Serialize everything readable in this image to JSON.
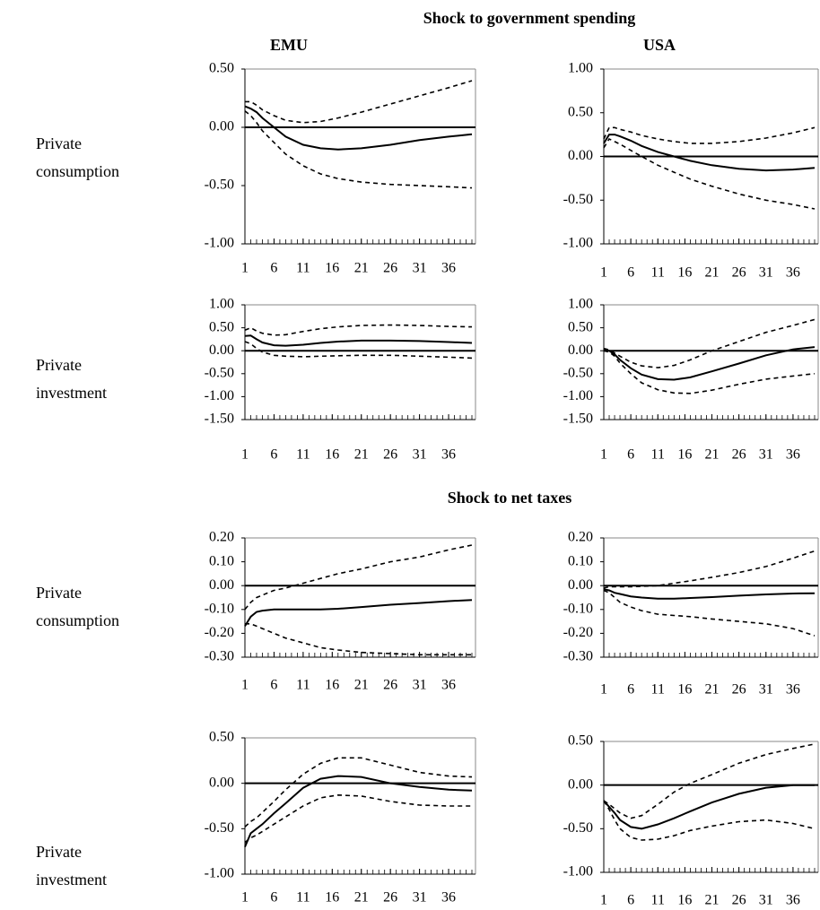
{
  "sections": [
    {
      "title": "Shock to government spending"
    },
    {
      "title": "Shock to net taxes"
    }
  ],
  "columns": [
    "EMU",
    "USA"
  ],
  "rows": [
    "Private consumption",
    "Private investment",
    "Private consumption",
    "Private investment"
  ],
  "chart_data": [
    {
      "type": "line",
      "x": [
        1,
        2,
        3,
        4,
        6,
        8,
        11,
        14,
        17,
        21,
        26,
        31,
        36,
        40
      ],
      "xlim": [
        1,
        40
      ],
      "xticks": [
        1,
        6,
        11,
        16,
        21,
        26,
        31,
        36
      ],
      "ylim": [
        -1,
        0.5
      ],
      "yticks": [
        {
          "value": -1,
          "label": "-1.00"
        },
        {
          "value": -0.5,
          "label": "-0.50"
        },
        {
          "value": 0,
          "label": "0.00"
        },
        {
          "value": 0.5,
          "label": "0.50"
        }
      ],
      "series": [
        {
          "color": "#000000",
          "style": "solid",
          "values": [
            0.18,
            0.16,
            0.13,
            0.08,
            0.0,
            -0.08,
            -0.15,
            -0.18,
            -0.19,
            -0.18,
            -0.15,
            -0.11,
            -0.08,
            -0.06
          ]
        },
        {
          "color": "#000000",
          "style": "dashed",
          "values": [
            0.22,
            0.22,
            0.19,
            0.15,
            0.1,
            0.06,
            0.04,
            0.05,
            0.08,
            0.13,
            0.2,
            0.27,
            0.34,
            0.4
          ]
        },
        {
          "color": "#000000",
          "style": "dashed",
          "values": [
            0.14,
            0.1,
            0.04,
            -0.03,
            -0.13,
            -0.23,
            -0.33,
            -0.4,
            -0.44,
            -0.47,
            -0.49,
            -0.5,
            -0.51,
            -0.52
          ]
        }
      ]
    },
    {
      "type": "line",
      "x": [
        1,
        2,
        3,
        4,
        6,
        8,
        11,
        14,
        17,
        21,
        26,
        31,
        36,
        40
      ],
      "xlim": [
        1,
        40
      ],
      "xticks": [
        1,
        6,
        11,
        16,
        21,
        26,
        31,
        36
      ],
      "ylim": [
        -1,
        1
      ],
      "yticks": [
        {
          "value": -1,
          "label": "-1.00"
        },
        {
          "value": -0.5,
          "label": "-0.50"
        },
        {
          "value": 0,
          "label": "0.00"
        },
        {
          "value": 0.5,
          "label": "0.50"
        },
        {
          "value": 1,
          "label": "1.00"
        }
      ],
      "series": [
        {
          "color": "#000000",
          "style": "solid",
          "values": [
            0.15,
            0.25,
            0.25,
            0.23,
            0.18,
            0.12,
            0.05,
            0.0,
            -0.05,
            -0.1,
            -0.14,
            -0.16,
            -0.15,
            -0.13
          ]
        },
        {
          "color": "#000000",
          "style": "dashed",
          "values": [
            0.2,
            0.33,
            0.33,
            0.31,
            0.28,
            0.24,
            0.2,
            0.17,
            0.15,
            0.15,
            0.17,
            0.21,
            0.27,
            0.33
          ]
        },
        {
          "color": "#000000",
          "style": "dashed",
          "values": [
            0.1,
            0.2,
            0.17,
            0.14,
            0.07,
            0.0,
            -0.1,
            -0.18,
            -0.26,
            -0.34,
            -0.43,
            -0.5,
            -0.55,
            -0.6
          ]
        }
      ]
    },
    {
      "type": "line",
      "x": [
        1,
        2,
        3,
        4,
        6,
        8,
        11,
        14,
        17,
        21,
        26,
        31,
        36,
        40
      ],
      "xlim": [
        1,
        40
      ],
      "xticks": [
        1,
        6,
        11,
        16,
        21,
        26,
        31,
        36
      ],
      "ylim": [
        -1.5,
        1
      ],
      "yticks": [
        {
          "value": -1.5,
          "label": "-1.50"
        },
        {
          "value": -1,
          "label": "-1.00"
        },
        {
          "value": -0.5,
          "label": "-0.50"
        },
        {
          "value": 0,
          "label": "0.00"
        },
        {
          "value": 0.5,
          "label": "0.50"
        },
        {
          "value": 1,
          "label": "1.00"
        }
      ],
      "series": [
        {
          "color": "#000000",
          "style": "solid",
          "values": [
            0.32,
            0.33,
            0.25,
            0.18,
            0.12,
            0.11,
            0.13,
            0.17,
            0.2,
            0.22,
            0.22,
            0.21,
            0.19,
            0.17
          ]
        },
        {
          "color": "#000000",
          "style": "dashed",
          "values": [
            0.45,
            0.5,
            0.43,
            0.38,
            0.34,
            0.35,
            0.42,
            0.48,
            0.52,
            0.55,
            0.56,
            0.55,
            0.53,
            0.52
          ]
        },
        {
          "color": "#000000",
          "style": "dashed",
          "values": [
            0.2,
            0.15,
            0.05,
            -0.03,
            -0.1,
            -0.12,
            -0.13,
            -0.12,
            -0.11,
            -0.1,
            -0.1,
            -0.12,
            -0.14,
            -0.16
          ]
        }
      ]
    },
    {
      "type": "line",
      "x": [
        1,
        2,
        3,
        4,
        6,
        8,
        11,
        14,
        17,
        21,
        26,
        31,
        36,
        40
      ],
      "xlim": [
        1,
        40
      ],
      "xticks": [
        1,
        6,
        11,
        16,
        21,
        26,
        31,
        36
      ],
      "ylim": [
        -1.5,
        1
      ],
      "yticks": [
        {
          "value": -1.5,
          "label": "-1.50"
        },
        {
          "value": -1,
          "label": "-1.00"
        },
        {
          "value": -0.5,
          "label": "-0.50"
        },
        {
          "value": 0,
          "label": "0.00"
        },
        {
          "value": 0.5,
          "label": "0.50"
        },
        {
          "value": 1,
          "label": "1.00"
        }
      ],
      "series": [
        {
          "color": "#000000",
          "style": "solid",
          "values": [
            0.02,
            0.0,
            -0.08,
            -0.2,
            -0.38,
            -0.52,
            -0.62,
            -0.63,
            -0.58,
            -0.45,
            -0.28,
            -0.1,
            0.03,
            0.08
          ]
        },
        {
          "color": "#000000",
          "style": "dashed",
          "values": [
            0.05,
            0.02,
            -0.05,
            -0.12,
            -0.25,
            -0.33,
            -0.37,
            -0.32,
            -0.2,
            0.0,
            0.2,
            0.4,
            0.55,
            0.68
          ]
        },
        {
          "color": "#000000",
          "style": "dashed",
          "values": [
            0.0,
            -0.03,
            -0.12,
            -0.27,
            -0.5,
            -0.7,
            -0.85,
            -0.92,
            -0.93,
            -0.86,
            -0.73,
            -0.62,
            -0.55,
            -0.5
          ]
        }
      ]
    },
    {
      "type": "line",
      "x": [
        1,
        2,
        3,
        4,
        6,
        8,
        11,
        14,
        17,
        21,
        26,
        31,
        36,
        40
      ],
      "xlim": [
        1,
        40
      ],
      "xticks": [
        1,
        6,
        11,
        16,
        21,
        26,
        31,
        36
      ],
      "ylim": [
        -0.3,
        0.2
      ],
      "yticks": [
        {
          "value": -0.3,
          "label": "-0.30"
        },
        {
          "value": -0.2,
          "label": "-0.20"
        },
        {
          "value": -0.1,
          "label": "-0.10"
        },
        {
          "value": 0,
          "label": "0.00"
        },
        {
          "value": 0.1,
          "label": "0.10"
        },
        {
          "value": 0.2,
          "label": "0.20"
        }
      ],
      "series": [
        {
          "color": "#000000",
          "style": "solid",
          "values": [
            -0.17,
            -0.13,
            -0.11,
            -0.105,
            -0.1,
            -0.1,
            -0.1,
            -0.1,
            -0.097,
            -0.09,
            -0.08,
            -0.073,
            -0.065,
            -0.06
          ]
        },
        {
          "color": "#000000",
          "style": "dashed",
          "values": [
            -0.1,
            -0.07,
            -0.05,
            -0.04,
            -0.02,
            -0.01,
            0.01,
            0.03,
            0.05,
            0.07,
            0.1,
            0.12,
            0.15,
            0.17
          ]
        },
        {
          "color": "#000000",
          "style": "dashed",
          "values": [
            -0.16,
            -0.16,
            -0.17,
            -0.18,
            -0.2,
            -0.22,
            -0.24,
            -0.26,
            -0.27,
            -0.28,
            -0.285,
            -0.29,
            -0.29,
            -0.29
          ]
        }
      ]
    },
    {
      "type": "line",
      "x": [
        1,
        2,
        3,
        4,
        6,
        8,
        11,
        14,
        17,
        21,
        26,
        31,
        36,
        40
      ],
      "xlim": [
        1,
        40
      ],
      "xticks": [
        1,
        6,
        11,
        16,
        21,
        26,
        31,
        36
      ],
      "ylim": [
        -0.3,
        0.2
      ],
      "yticks": [
        {
          "value": -0.3,
          "label": "-0.30"
        },
        {
          "value": -0.2,
          "label": "-0.20"
        },
        {
          "value": -0.1,
          "label": "-0.10"
        },
        {
          "value": 0,
          "label": "0.00"
        },
        {
          "value": 0.1,
          "label": "0.10"
        },
        {
          "value": 0.2,
          "label": "0.20"
        }
      ],
      "series": [
        {
          "color": "#000000",
          "style": "solid",
          "values": [
            -0.015,
            -0.02,
            -0.03,
            -0.035,
            -0.045,
            -0.05,
            -0.055,
            -0.055,
            -0.052,
            -0.048,
            -0.042,
            -0.037,
            -0.033,
            -0.032
          ]
        },
        {
          "color": "#000000",
          "style": "dashed",
          "values": [
            -0.01,
            -0.005,
            -0.005,
            -0.005,
            -0.005,
            -0.003,
            0.0,
            0.01,
            0.02,
            0.035,
            0.055,
            0.08,
            0.115,
            0.145
          ]
        },
        {
          "color": "#000000",
          "style": "dashed",
          "values": [
            -0.02,
            -0.03,
            -0.05,
            -0.07,
            -0.09,
            -0.105,
            -0.12,
            -0.125,
            -0.13,
            -0.14,
            -0.15,
            -0.16,
            -0.18,
            -0.21
          ]
        }
      ]
    },
    {
      "type": "line",
      "x": [
        1,
        2,
        3,
        4,
        6,
        8,
        11,
        14,
        17,
        21,
        26,
        31,
        36,
        40
      ],
      "xlim": [
        1,
        40
      ],
      "xticks": [
        1,
        6,
        11,
        16,
        21,
        26,
        31,
        36
      ],
      "ylim": [
        -1,
        0.5
      ],
      "yticks": [
        {
          "value": -1,
          "label": "-1.00"
        },
        {
          "value": -0.5,
          "label": "-0.50"
        },
        {
          "value": 0,
          "label": "0.00"
        },
        {
          "value": 0.5,
          "label": "0.50"
        }
      ],
      "series": [
        {
          "color": "#000000",
          "style": "solid",
          "values": [
            -0.7,
            -0.55,
            -0.5,
            -0.45,
            -0.33,
            -0.22,
            -0.05,
            0.05,
            0.08,
            0.07,
            0.0,
            -0.04,
            -0.07,
            -0.08
          ]
        },
        {
          "color": "#000000",
          "style": "dashed",
          "values": [
            -0.48,
            -0.42,
            -0.38,
            -0.32,
            -0.2,
            -0.07,
            0.1,
            0.22,
            0.28,
            0.28,
            0.2,
            0.12,
            0.08,
            0.07
          ]
        },
        {
          "color": "#000000",
          "style": "dashed",
          "values": [
            -0.65,
            -0.6,
            -0.57,
            -0.53,
            -0.45,
            -0.37,
            -0.25,
            -0.16,
            -0.13,
            -0.14,
            -0.2,
            -0.24,
            -0.25,
            -0.25
          ]
        }
      ]
    },
    {
      "type": "line",
      "x": [
        1,
        2,
        3,
        4,
        6,
        8,
        11,
        14,
        17,
        21,
        26,
        31,
        36,
        40
      ],
      "xlim": [
        1,
        40
      ],
      "xticks": [
        1,
        6,
        11,
        16,
        21,
        26,
        31,
        36
      ],
      "ylim": [
        -1,
        0.5
      ],
      "yticks": [
        {
          "value": -1,
          "label": "-1.00"
        },
        {
          "value": -0.5,
          "label": "-0.50"
        },
        {
          "value": 0,
          "label": "0.00"
        },
        {
          "value": 0.5,
          "label": "0.50"
        }
      ],
      "series": [
        {
          "color": "#000000",
          "style": "solid",
          "values": [
            -0.18,
            -0.25,
            -0.32,
            -0.4,
            -0.48,
            -0.5,
            -0.45,
            -0.38,
            -0.3,
            -0.2,
            -0.1,
            -0.03,
            0.0,
            0.0
          ]
        },
        {
          "color": "#000000",
          "style": "dashed",
          "values": [
            -0.18,
            -0.22,
            -0.27,
            -0.32,
            -0.38,
            -0.35,
            -0.22,
            -0.08,
            0.02,
            0.12,
            0.25,
            0.35,
            0.42,
            0.47
          ]
        },
        {
          "color": "#000000",
          "style": "dashed",
          "values": [
            -0.18,
            -0.28,
            -0.4,
            -0.5,
            -0.6,
            -0.63,
            -0.62,
            -0.58,
            -0.52,
            -0.47,
            -0.42,
            -0.4,
            -0.44,
            -0.5
          ]
        }
      ]
    }
  ]
}
